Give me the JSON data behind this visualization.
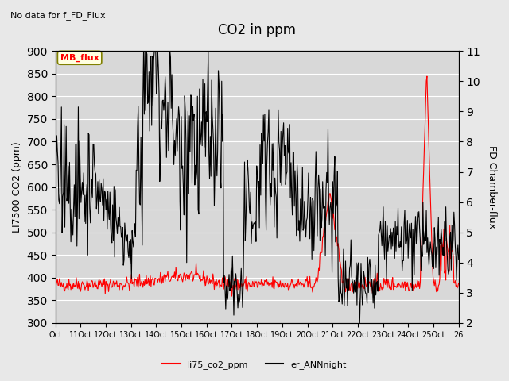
{
  "title": "CO2 in ppm",
  "subtitle": "No data for f_FD_Flux",
  "ylabel_left": "LI7500 CO2 (ppm)",
  "ylabel_right": "FD Chamber-flux",
  "ylim_left": [
    300,
    900
  ],
  "ylim_right": [
    2.0,
    11.0
  ],
  "yticks_left": [
    300,
    350,
    400,
    450,
    500,
    550,
    600,
    650,
    700,
    750,
    800,
    850,
    900
  ],
  "yticks_right": [
    2.0,
    3.0,
    4.0,
    5.0,
    6.0,
    7.0,
    8.0,
    9.0,
    10.0,
    11.0
  ],
  "xtick_labels": [
    "Oct",
    "11Oct",
    "12Oct",
    "13Oct",
    "14Oct",
    "15Oct",
    "16Oct",
    "17Oct",
    "18Oct",
    "19Oct",
    "20Oct",
    "21Oct",
    "22Oct",
    "23Oct",
    "24Oct",
    "25Oct",
    "26"
  ],
  "legend_label_red": "li75_co2_ppm",
  "legend_label_black": "er_ANNnight",
  "mb_flux_label": "MB_flux",
  "background_color": "#e8e8e8",
  "plot_bg_color": "#d8d8d8",
  "grid_color": "#ffffff",
  "line_color_red": "#ff0000",
  "line_color_black": "#000000"
}
